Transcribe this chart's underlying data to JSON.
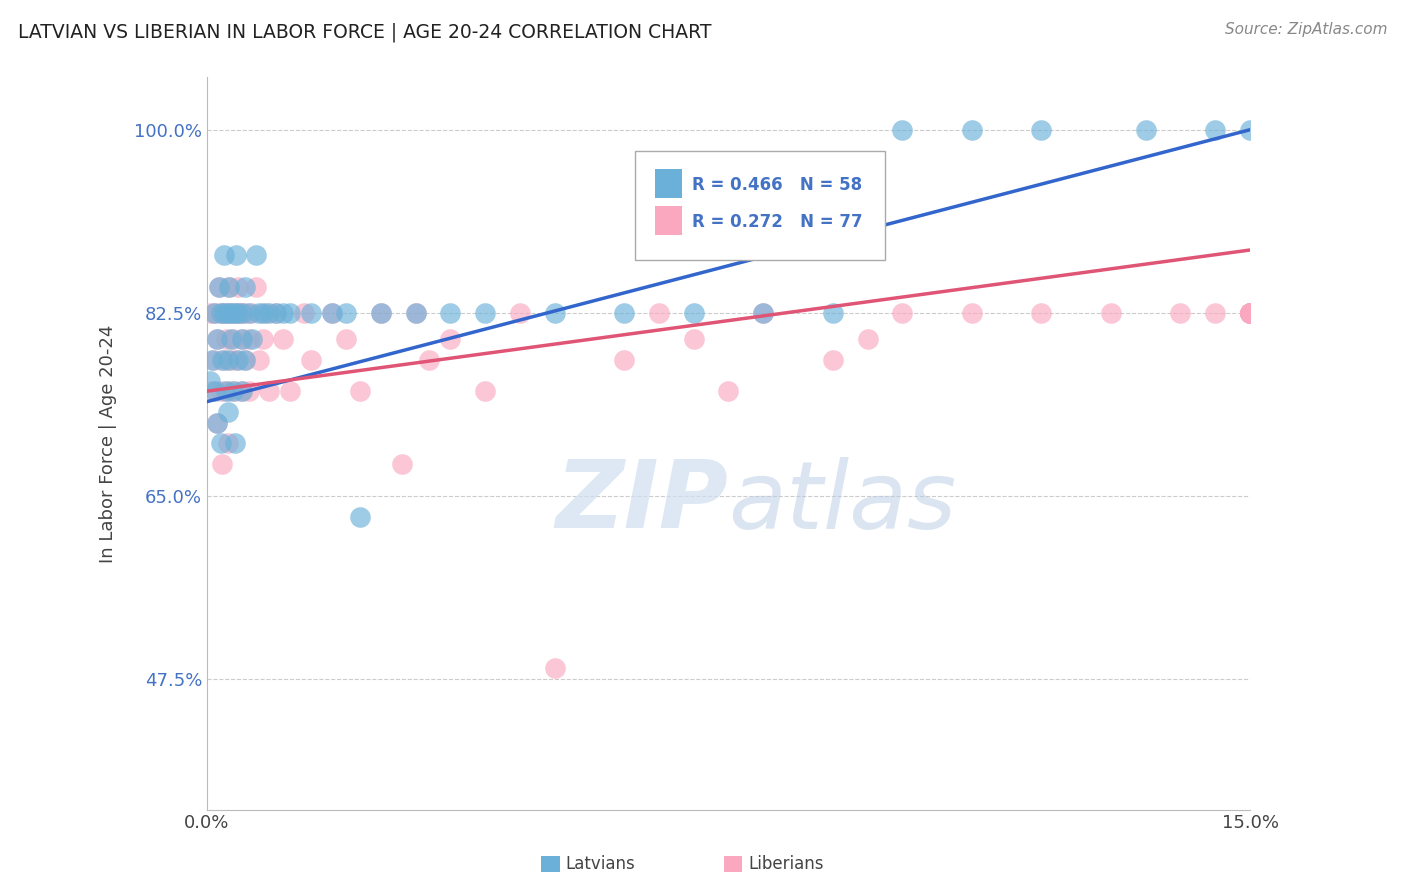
{
  "title": "LATVIAN VS LIBERIAN IN LABOR FORCE | AGE 20-24 CORRELATION CHART",
  "source": "Source: ZipAtlas.com",
  "ylabel": "In Labor Force | Age 20-24",
  "R_latvian": 0.466,
  "N_latvian": 58,
  "R_liberian": 0.272,
  "N_liberian": 77,
  "latvian_color": "#6ab0d8",
  "liberian_color": "#f9a8c0",
  "trend_latvian_color": "#3366cc",
  "trend_liberian_color": "#e05575",
  "background_color": "#ffffff",
  "grid_color": "#cccccc",
  "xlim": [
    0.0,
    15.0
  ],
  "ylim": [
    35.0,
    105.0
  ],
  "ytick_values": [
    47.5,
    65.0,
    82.5,
    100.0
  ],
  "ytick_labels": [
    "47.5%",
    "65.0%",
    "82.5%",
    "100.0%"
  ],
  "trend_lat_x0": 0.0,
  "trend_lat_y0": 74.0,
  "trend_lat_x1": 15.0,
  "trend_lat_y1": 100.0,
  "trend_lib_x0": 0.0,
  "trend_lib_y0": 75.0,
  "trend_lib_x1": 15.0,
  "trend_lib_y1": 88.5,
  "latvian_x": [
    0.05,
    0.08,
    0.1,
    0.12,
    0.15,
    0.15,
    0.18,
    0.2,
    0.2,
    0.22,
    0.25,
    0.25,
    0.28,
    0.3,
    0.3,
    0.3,
    0.32,
    0.35,
    0.35,
    0.38,
    0.4,
    0.4,
    0.42,
    0.45,
    0.45,
    0.5,
    0.5,
    0.5,
    0.55,
    0.55,
    0.6,
    0.65,
    0.7,
    0.75,
    0.8,
    0.9,
    1.0,
    1.1,
    1.2,
    1.5,
    1.8,
    2.0,
    2.2,
    2.5,
    3.0,
    3.5,
    4.0,
    5.0,
    6.0,
    7.0,
    8.0,
    9.0,
    10.0,
    11.0,
    12.0,
    13.5,
    14.5,
    15.0
  ],
  "latvian_y": [
    76.0,
    78.0,
    82.5,
    75.0,
    80.0,
    72.0,
    85.0,
    82.5,
    70.0,
    78.0,
    82.5,
    88.0,
    75.0,
    82.5,
    78.0,
    73.0,
    85.0,
    82.5,
    80.0,
    75.0,
    82.5,
    70.0,
    88.0,
    82.5,
    78.0,
    82.5,
    80.0,
    75.0,
    85.0,
    78.0,
    82.5,
    80.0,
    88.0,
    82.5,
    82.5,
    82.5,
    82.5,
    82.5,
    82.5,
    82.5,
    82.5,
    82.5,
    63.0,
    82.5,
    82.5,
    82.5,
    82.5,
    82.5,
    82.5,
    82.5,
    82.5,
    82.5,
    100.0,
    100.0,
    100.0,
    100.0,
    100.0,
    100.0
  ],
  "liberian_x": [
    0.05,
    0.08,
    0.1,
    0.12,
    0.15,
    0.15,
    0.18,
    0.2,
    0.2,
    0.22,
    0.25,
    0.25,
    0.28,
    0.3,
    0.3,
    0.3,
    0.32,
    0.35,
    0.35,
    0.38,
    0.4,
    0.4,
    0.42,
    0.45,
    0.45,
    0.5,
    0.5,
    0.5,
    0.55,
    0.55,
    0.6,
    0.6,
    0.65,
    0.7,
    0.75,
    0.8,
    0.85,
    0.9,
    1.0,
    1.1,
    1.2,
    1.4,
    1.5,
    1.8,
    2.0,
    2.2,
    2.5,
    2.8,
    3.0,
    3.2,
    3.5,
    4.0,
    4.5,
    5.0,
    6.0,
    6.5,
    7.0,
    7.5,
    8.0,
    9.0,
    9.5,
    10.0,
    11.0,
    12.0,
    13.0,
    14.0,
    14.5,
    15.0,
    15.0,
    15.0,
    15.0,
    15.0,
    15.0,
    15.0,
    15.0,
    15.0,
    15.0
  ],
  "liberian_y": [
    82.5,
    75.0,
    78.0,
    82.5,
    80.0,
    72.0,
    85.0,
    75.0,
    82.5,
    68.0,
    82.5,
    78.0,
    80.0,
    82.5,
    75.0,
    70.0,
    85.0,
    82.5,
    78.0,
    80.0,
    75.0,
    82.5,
    78.0,
    82.5,
    85.0,
    80.0,
    82.5,
    75.0,
    82.5,
    78.0,
    80.0,
    75.0,
    82.5,
    85.0,
    78.0,
    80.0,
    82.5,
    75.0,
    82.5,
    80.0,
    75.0,
    82.5,
    78.0,
    82.5,
    80.0,
    75.0,
    82.5,
    68.0,
    82.5,
    78.0,
    80.0,
    75.0,
    82.5,
    48.5,
    78.0,
    82.5,
    80.0,
    75.0,
    82.5,
    78.0,
    80.0,
    82.5,
    82.5,
    82.5,
    82.5,
    82.5,
    82.5,
    82.5,
    82.5,
    82.5,
    82.5,
    82.5,
    82.5,
    82.5,
    82.5,
    82.5,
    82.5
  ]
}
